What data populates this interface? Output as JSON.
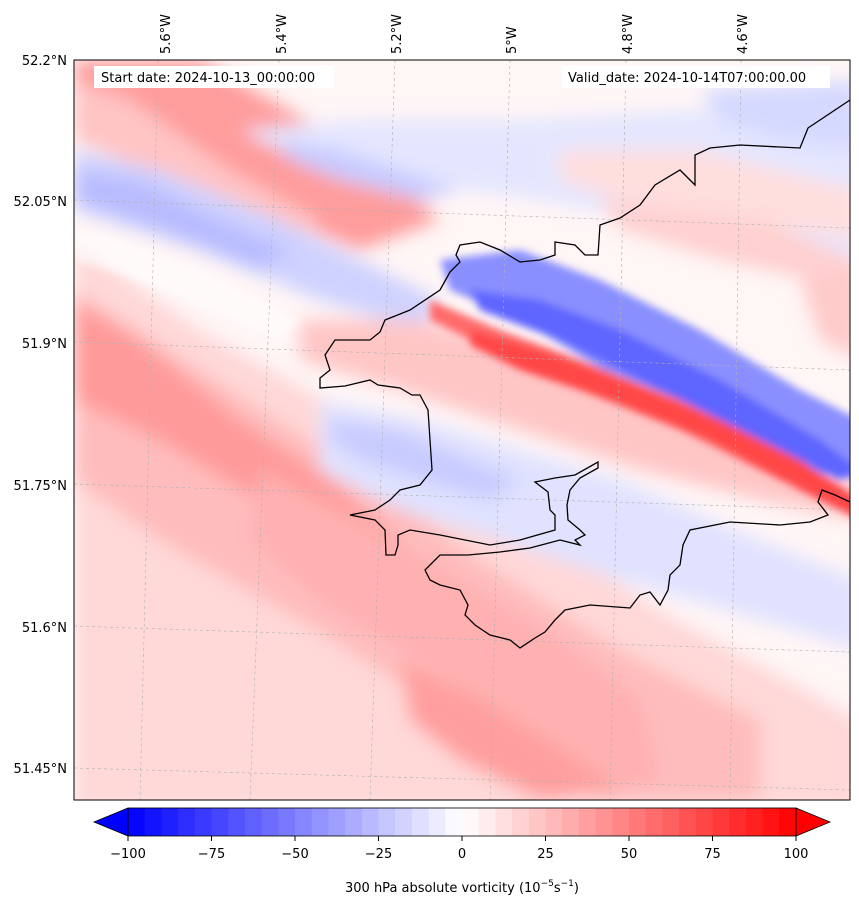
{
  "map": {
    "start_date_label": "Start date: 2024-10-13_00:00:00",
    "valid_date_label": "Valid_date: 2024-10-14T07:00:00.00",
    "lon_labels": [
      "5.6°W",
      "5.4°W",
      "5.2°W",
      "5°W",
      "4.8°W",
      "4.6°W"
    ],
    "lat_labels": [
      "52.2°N",
      "52.05°N",
      "51.9°N",
      "51.75°N",
      "51.6°N",
      "51.45°N"
    ],
    "gridlines": true,
    "coastline_color": "#000000"
  },
  "colorbar": {
    "ticks": [
      "−100",
      "−75",
      "−50",
      "−25",
      "0",
      "25",
      "50",
      "75",
      "100"
    ],
    "label": "300 hPa absolute vorticity (10",
    "label_exp1": "−5",
    "label_mid": "s",
    "label_exp2": "−1",
    "label_end": ")",
    "min_color": "#0000ff",
    "mid_color": "#ffffff",
    "max_color": "#ff0000",
    "range": [
      -100,
      100
    ],
    "levels": 41
  }
}
